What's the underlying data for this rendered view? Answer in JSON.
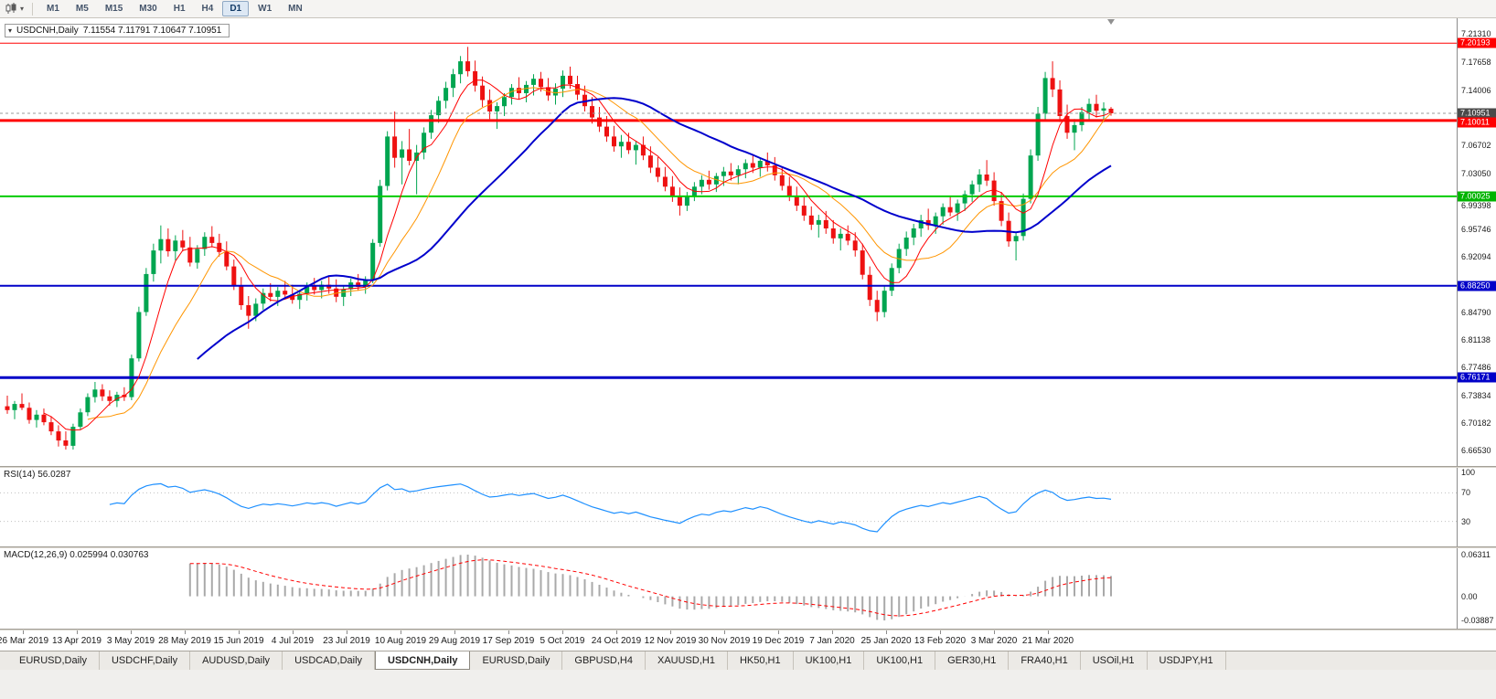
{
  "toolbar": {
    "timeframes": [
      {
        "label": "M1",
        "active": false
      },
      {
        "label": "M5",
        "active": false
      },
      {
        "label": "M15",
        "active": false
      },
      {
        "label": "M30",
        "active": false
      },
      {
        "label": "H1",
        "active": false
      },
      {
        "label": "H4",
        "active": false
      },
      {
        "label": "D1",
        "active": true
      },
      {
        "label": "W1",
        "active": false
      },
      {
        "label": "MN",
        "active": false
      }
    ]
  },
  "chart": {
    "title": "USDCNH,Daily",
    "ohlc_text": "7.11554 7.11791 7.10647 7.10951",
    "ohlc": {
      "open": "7.11554",
      "high": "7.11791",
      "low": "7.10647",
      "close": "7.10951"
    }
  },
  "price_scale": {
    "labels": [
      "7.21310",
      "7.17658",
      "7.14006",
      "7.06702",
      "7.03050",
      "6.99398",
      "6.95746",
      "6.92094",
      "6.84790",
      "6.81138",
      "6.77486",
      "6.73834",
      "6.70182",
      "6.66530"
    ],
    "badges": [
      {
        "text": "7.20193",
        "color": "#ff0000"
      },
      {
        "text": "7.10951",
        "color": "#4a4a4a"
      },
      {
        "text": "7.10011",
        "color": "#ff0000"
      },
      {
        "text": "7.00025",
        "color": "#00b400"
      },
      {
        "text": "6.88250",
        "color": "#0000c8"
      },
      {
        "text": "6.76171",
        "color": "#0000c8"
      }
    ]
  },
  "indicators": {
    "rsi": {
      "label": "RSI(14) 56.0287",
      "name": "RSI(14)",
      "value": "56.0287",
      "color": "#1e90ff",
      "levels": [
        70,
        30
      ],
      "scale_labels": [
        "100",
        "70",
        "30"
      ]
    },
    "macd": {
      "label": "MACD(12,26,9) 0.025994 0.030763",
      "name": "MACD(12,26,9)",
      "value": "0.025994",
      "signal": "0.030763",
      "histogram_color": "#a9a9a9",
      "signal_color": "#ff0000",
      "scale_labels": [
        "0.06311",
        "0.00",
        "-0.03887"
      ]
    }
  },
  "date_axis": [
    "26 Mar 2019",
    "13 Apr 2019",
    "3 May 2019",
    "28 May 2019",
    "15 Jun 2019",
    "4 Jul 2019",
    "23 Jul 2019",
    "10 Aug 2019",
    "29 Aug 2019",
    "17 Sep 2019",
    "5 Oct 2019",
    "24 Oct 2019",
    "12 Nov 2019",
    "30 Nov 2019",
    "19 Dec 2019",
    "7 Jan 2020",
    "25 Jan 2020",
    "13 Feb 2020",
    "3 Mar 2020",
    "21 Mar 2020"
  ],
  "tabs": [
    {
      "label": "EURUSD,Daily",
      "active": false
    },
    {
      "label": "USDCHF,Daily",
      "active": false
    },
    {
      "label": "AUDUSD,Daily",
      "active": false
    },
    {
      "label": "USDCAD,Daily",
      "active": false
    },
    {
      "label": "USDCNH,Daily",
      "active": true
    },
    {
      "label": "EURUSD,Daily",
      "active": false
    },
    {
      "label": "GBPUSD,H4",
      "active": false
    },
    {
      "label": "XAUUSD,H1",
      "active": false
    },
    {
      "label": "HK50,H1",
      "active": false
    },
    {
      "label": "UK100,H1",
      "active": false
    },
    {
      "label": "UK100,H1",
      "active": false
    },
    {
      "label": "GER30,H1",
      "active": false
    },
    {
      "label": "FRA40,H1",
      "active": false
    },
    {
      "label": "USOil,H1",
      "active": false
    },
    {
      "label": "USDJPY,H1",
      "active": false
    }
  ],
  "chart_data": {
    "type": "candlestick",
    "symbol": "USDCNH",
    "timeframe": "Daily",
    "price_axis": {
      "top": 7.225,
      "bottom": 6.655
    },
    "current_price": 7.10951,
    "colors": {
      "bull": "#00a550",
      "bear": "#ee1111",
      "background": "#ffffff"
    },
    "hlines": [
      {
        "price": 7.20193,
        "color": "#ff0000",
        "width": 1
      },
      {
        "price": 7.10011,
        "color": "#ff0000",
        "width": 3
      },
      {
        "price": 7.00025,
        "color": "#00cc00",
        "width": 2
      },
      {
        "price": 6.8825,
        "color": "#0000c8",
        "width": 2
      },
      {
        "price": 6.76171,
        "color": "#0000c8",
        "width": 3
      }
    ],
    "moving_averages": [
      {
        "period": 12,
        "color": "#ff9500",
        "width": 1
      },
      {
        "period": 6,
        "color": "#ff0000",
        "width": 1
      },
      {
        "period": 27,
        "color": "#0000cc",
        "width": 2
      }
    ],
    "candles": [
      [
        6.724,
        6.738,
        6.714,
        6.719
      ],
      [
        6.719,
        6.731,
        6.707,
        6.727
      ],
      [
        6.727,
        6.741,
        6.719,
        6.722
      ],
      [
        6.722,
        6.729,
        6.701,
        6.706
      ],
      [
        6.706,
        6.719,
        6.696,
        6.713
      ],
      [
        6.713,
        6.721,
        6.699,
        6.703
      ],
      [
        6.703,
        6.711,
        6.686,
        6.691
      ],
      [
        6.691,
        6.699,
        6.671,
        6.679
      ],
      [
        6.679,
        6.691,
        6.667,
        6.672
      ],
      [
        6.672,
        6.701,
        6.667,
        6.697
      ],
      [
        6.697,
        6.721,
        6.693,
        6.716
      ],
      [
        6.716,
        6.741,
        6.711,
        6.736
      ],
      [
        6.736,
        6.756,
        6.729,
        6.746
      ],
      [
        6.746,
        6.753,
        6.731,
        6.737
      ],
      [
        6.737,
        6.745,
        6.725,
        6.731
      ],
      [
        6.731,
        6.743,
        6.723,
        6.739
      ],
      [
        6.739,
        6.749,
        6.731,
        6.736
      ],
      [
        6.736,
        6.792,
        6.732,
        6.787
      ],
      [
        6.787,
        6.855,
        6.783,
        6.848
      ],
      [
        6.848,
        6.906,
        6.843,
        6.898
      ],
      [
        6.898,
        6.938,
        6.888,
        6.929
      ],
      [
        6.929,
        6.962,
        6.912,
        6.944
      ],
      [
        6.944,
        6.958,
        6.921,
        6.928
      ],
      [
        6.928,
        6.949,
        6.916,
        6.942
      ],
      [
        6.942,
        6.956,
        6.928,
        6.933
      ],
      [
        6.933,
        6.947,
        6.908,
        6.913
      ],
      [
        6.913,
        6.936,
        6.905,
        6.931
      ],
      [
        6.931,
        6.953,
        6.922,
        6.947
      ],
      [
        6.947,
        6.961,
        6.933,
        6.939
      ],
      [
        6.939,
        6.951,
        6.921,
        6.927
      ],
      [
        6.927,
        6.941,
        6.903,
        6.908
      ],
      [
        6.908,
        6.917,
        6.877,
        6.882
      ],
      [
        6.882,
        6.894,
        6.851,
        6.857
      ],
      [
        6.857,
        6.869,
        6.826,
        6.843
      ],
      [
        6.843,
        6.866,
        6.836,
        6.859
      ],
      [
        6.859,
        6.879,
        6.851,
        6.873
      ],
      [
        6.873,
        6.886,
        6.862,
        6.868
      ],
      [
        6.868,
        6.881,
        6.856,
        6.876
      ],
      [
        6.876,
        6.889,
        6.866,
        6.871
      ],
      [
        6.871,
        6.884,
        6.859,
        6.864
      ],
      [
        6.864,
        6.877,
        6.852,
        6.872
      ],
      [
        6.872,
        6.887,
        6.863,
        6.882
      ],
      [
        6.882,
        6.893,
        6.871,
        6.877
      ],
      [
        6.877,
        6.889,
        6.866,
        6.884
      ],
      [
        6.884,
        6.896,
        6.872,
        6.879
      ],
      [
        6.879,
        6.891,
        6.861,
        6.868
      ],
      [
        6.868,
        6.883,
        6.856,
        6.878
      ],
      [
        6.878,
        6.892,
        6.869,
        6.887
      ],
      [
        6.887,
        6.898,
        6.876,
        6.881
      ],
      [
        6.881,
        6.895,
        6.872,
        6.891
      ],
      [
        6.891,
        6.944,
        6.886,
        6.939
      ],
      [
        6.939,
        7.022,
        6.934,
        7.014
      ],
      [
        7.014,
        7.086,
        7.008,
        7.079
      ],
      [
        7.079,
        7.112,
        7.038,
        7.051
      ],
      [
        7.051,
        7.073,
        7.016,
        7.062
      ],
      [
        7.062,
        7.089,
        7.041,
        7.047
      ],
      [
        7.047,
        7.068,
        7.003,
        7.058
      ],
      [
        7.058,
        7.091,
        7.049,
        7.084
      ],
      [
        7.084,
        7.114,
        7.076,
        7.107
      ],
      [
        7.107,
        7.132,
        7.097,
        7.126
      ],
      [
        7.126,
        7.151,
        7.116,
        7.143
      ],
      [
        7.143,
        7.168,
        7.131,
        7.161
      ],
      [
        7.161,
        7.185,
        7.149,
        7.178
      ],
      [
        7.178,
        7.197,
        7.158,
        7.165
      ],
      [
        7.165,
        7.179,
        7.138,
        7.146
      ],
      [
        7.146,
        7.158,
        7.118,
        7.127
      ],
      [
        7.127,
        7.141,
        7.102,
        7.112
      ],
      [
        7.112,
        7.124,
        7.089,
        7.119
      ],
      [
        7.119,
        7.136,
        7.106,
        7.131
      ],
      [
        7.131,
        7.148,
        7.121,
        7.143
      ],
      [
        7.143,
        7.157,
        7.128,
        7.136
      ],
      [
        7.136,
        7.152,
        7.124,
        7.147
      ],
      [
        7.147,
        7.161,
        7.133,
        7.155
      ],
      [
        7.155,
        7.164,
        7.138,
        7.144
      ],
      [
        7.144,
        7.156,
        7.126,
        7.133
      ],
      [
        7.133,
        7.149,
        7.121,
        7.142
      ],
      [
        7.142,
        7.166,
        7.131,
        7.159
      ],
      [
        7.159,
        7.171,
        7.142,
        7.148
      ],
      [
        7.148,
        7.159,
        7.127,
        7.134
      ],
      [
        7.134,
        7.146,
        7.112,
        7.119
      ],
      [
        7.119,
        7.131,
        7.096,
        7.104
      ],
      [
        7.104,
        7.118,
        7.085,
        7.092
      ],
      [
        7.092,
        7.106,
        7.072,
        7.079
      ],
      [
        7.079,
        7.093,
        7.059,
        7.066
      ],
      [
        7.066,
        7.081,
        7.051,
        7.072
      ],
      [
        7.072,
        7.084,
        7.056,
        7.061
      ],
      [
        7.061,
        7.073,
        7.042,
        7.068
      ],
      [
        7.068,
        7.079,
        7.048,
        7.054
      ],
      [
        7.054,
        7.066,
        7.031,
        7.038
      ],
      [
        7.038,
        7.052,
        7.019,
        7.026
      ],
      [
        7.026,
        7.039,
        7.007,
        7.013
      ],
      [
        7.013,
        7.027,
        6.993,
        7.001
      ],
      [
        7.001,
        7.012,
        6.975,
        6.988
      ],
      [
        6.988,
        7.006,
        6.981,
        7.001
      ],
      [
        7.001,
        7.019,
        6.994,
        7.013
      ],
      [
        7.013,
        7.028,
        7.003,
        7.022
      ],
      [
        7.022,
        7.034,
        7.009,
        7.016
      ],
      [
        7.016,
        7.031,
        7.006,
        7.027
      ],
      [
        7.027,
        7.039,
        7.014,
        7.033
      ],
      [
        7.033,
        7.044,
        7.021,
        7.028
      ],
      [
        7.028,
        7.041,
        7.016,
        7.036
      ],
      [
        7.036,
        7.049,
        7.024,
        7.044
      ],
      [
        7.044,
        7.056,
        7.031,
        7.038
      ],
      [
        7.038,
        7.051,
        7.026,
        7.047
      ],
      [
        7.047,
        7.058,
        7.033,
        7.041
      ],
      [
        7.041,
        7.052,
        7.021,
        7.028
      ],
      [
        7.028,
        7.039,
        7.008,
        7.014
      ],
      [
        7.014,
        7.026,
        6.994,
        7.001
      ],
      [
        7.001,
        7.013,
        6.981,
        6.988
      ],
      [
        6.988,
        6.999,
        6.968,
        6.975
      ],
      [
        6.975,
        6.987,
        6.956,
        6.963
      ],
      [
        6.963,
        6.976,
        6.946,
        6.969
      ],
      [
        6.969,
        6.981,
        6.951,
        6.958
      ],
      [
        6.958,
        6.969,
        6.938,
        6.945
      ],
      [
        6.945,
        6.958,
        6.929,
        6.951
      ],
      [
        6.951,
        6.962,
        6.936,
        6.942
      ],
      [
        6.942,
        6.953,
        6.921,
        6.929
      ],
      [
        6.929,
        6.938,
        6.891,
        6.897
      ],
      [
        6.897,
        6.908,
        6.856,
        6.864
      ],
      [
        6.864,
        6.876,
        6.836,
        6.848
      ],
      [
        6.848,
        6.882,
        6.841,
        6.876
      ],
      [
        6.876,
        6.912,
        6.869,
        6.906
      ],
      [
        6.906,
        6.938,
        6.899,
        6.931
      ],
      [
        6.931,
        6.954,
        6.922,
        6.946
      ],
      [
        6.946,
        6.964,
        6.936,
        6.958
      ],
      [
        6.958,
        6.976,
        6.947,
        6.969
      ],
      [
        6.969,
        6.984,
        6.956,
        6.962
      ],
      [
        6.962,
        6.979,
        6.951,
        6.974
      ],
      [
        6.974,
        6.991,
        6.963,
        6.986
      ],
      [
        6.986,
        7.001,
        6.974,
        6.979
      ],
      [
        6.979,
        6.996,
        6.968,
        6.991
      ],
      [
        6.991,
        7.008,
        6.981,
        7.003
      ],
      [
        7.003,
        7.021,
        6.993,
        7.016
      ],
      [
        7.016,
        7.036,
        7.006,
        7.029
      ],
      [
        7.029,
        7.048,
        7.014,
        7.021
      ],
      [
        7.021,
        7.032,
        6.988,
        6.994
      ],
      [
        6.994,
        7.006,
        6.961,
        6.968
      ],
      [
        6.968,
        6.979,
        6.934,
        6.941
      ],
      [
        6.941,
        6.953,
        6.916,
        6.948
      ],
      [
        6.948,
        7.004,
        6.942,
        6.997
      ],
      [
        6.997,
        7.062,
        6.991,
        7.054
      ],
      [
        7.054,
        7.118,
        7.047,
        7.109
      ],
      [
        7.109,
        7.164,
        7.099,
        7.156
      ],
      [
        7.156,
        7.178,
        7.131,
        7.141
      ],
      [
        7.141,
        7.153,
        7.098,
        7.106
      ],
      [
        7.106,
        7.121,
        7.076,
        7.084
      ],
      [
        7.084,
        7.102,
        7.061,
        7.094
      ],
      [
        7.094,
        7.118,
        7.086,
        7.111
      ],
      [
        7.111,
        7.129,
        7.099,
        7.122
      ],
      [
        7.122,
        7.134,
        7.104,
        7.113
      ],
      [
        7.113,
        7.124,
        7.098,
        7.116
      ],
      [
        7.11554,
        7.11791,
        7.10647,
        7.10951
      ]
    ]
  }
}
